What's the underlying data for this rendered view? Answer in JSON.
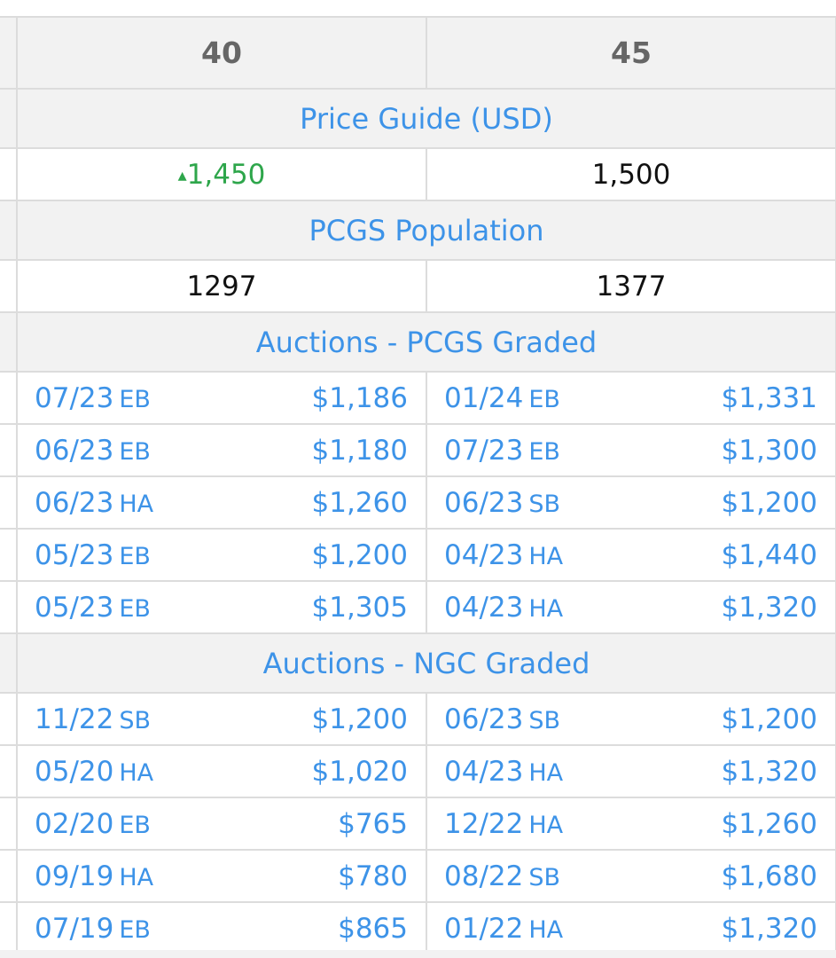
{
  "grades": [
    "40",
    "45"
  ],
  "price_guide": {
    "title": "Price Guide (USD)",
    "values": [
      {
        "value": "1,450",
        "trend": "up",
        "trend_icon": "▴"
      },
      {
        "value": "1,500",
        "trend": "none",
        "trend_icon": ""
      }
    ]
  },
  "population": {
    "title": "PCGS Population",
    "values": [
      "1297",
      "1377"
    ]
  },
  "pcgs_auctions": {
    "title": "Auctions - PCGS Graded",
    "rows": [
      [
        {
          "date": "07/23",
          "house": "EB",
          "price": "$1,186"
        },
        {
          "date": "01/24",
          "house": "EB",
          "price": "$1,331"
        }
      ],
      [
        {
          "date": "06/23",
          "house": "EB",
          "price": "$1,180"
        },
        {
          "date": "07/23",
          "house": "EB",
          "price": "$1,300"
        }
      ],
      [
        {
          "date": "06/23",
          "house": "HA",
          "price": "$1,260"
        },
        {
          "date": "06/23",
          "house": "SB",
          "price": "$1,200"
        }
      ],
      [
        {
          "date": "05/23",
          "house": "EB",
          "price": "$1,200"
        },
        {
          "date": "04/23",
          "house": "HA",
          "price": "$1,440"
        }
      ],
      [
        {
          "date": "05/23",
          "house": "EB",
          "price": "$1,305"
        },
        {
          "date": "04/23",
          "house": "HA",
          "price": "$1,320"
        }
      ]
    ]
  },
  "ngc_auctions": {
    "title": "Auctions - NGC Graded",
    "rows": [
      [
        {
          "date": "11/22",
          "house": "SB",
          "price": "$1,200"
        },
        {
          "date": "06/23",
          "house": "SB",
          "price": "$1,200"
        }
      ],
      [
        {
          "date": "05/20",
          "house": "HA",
          "price": "$1,020"
        },
        {
          "date": "04/23",
          "house": "HA",
          "price": "$1,320"
        }
      ],
      [
        {
          "date": "02/20",
          "house": "EB",
          "price": "$765"
        },
        {
          "date": "12/22",
          "house": "HA",
          "price": "$1,260"
        }
      ],
      [
        {
          "date": "09/19",
          "house": "HA",
          "price": "$780"
        },
        {
          "date": "08/22",
          "house": "SB",
          "price": "$1,680"
        }
      ],
      [
        {
          "date": "07/19",
          "house": "EB",
          "price": "$865"
        },
        {
          "date": "01/22",
          "house": "HA",
          "price": "$1,320"
        }
      ]
    ]
  },
  "colors": {
    "link_blue": "#3d93e8",
    "trend_up_green": "#2ea64b",
    "header_bg": "#f2f2f2",
    "border": "#dcdcdc",
    "grade_text": "#666666"
  }
}
